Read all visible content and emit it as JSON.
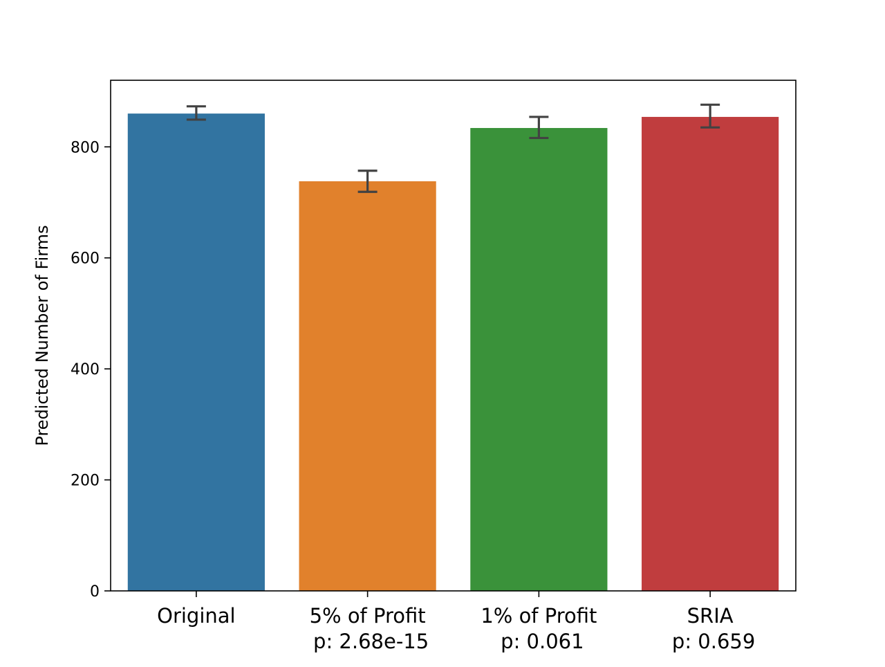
{
  "chart_data": {
    "type": "bar",
    "title": "",
    "xlabel": "",
    "ylabel": "Predicted Number of Firms",
    "ylim": [
      0,
      920
    ],
    "yticks": [
      0,
      200,
      400,
      600,
      800
    ],
    "ytick_labels": [
      "0",
      "200",
      "400",
      "600",
      "800"
    ],
    "grid": false,
    "legend": "none",
    "categories": [
      {
        "label": "Original",
        "sublabel": ""
      },
      {
        "label": "5% of Profit",
        "sublabel": "p: 2.68e-15"
      },
      {
        "label": "1% of Profit",
        "sublabel": "p: 0.061"
      },
      {
        "label": "SRIA",
        "sublabel": "p: 0.659"
      }
    ],
    "values": [
      860,
      738,
      834,
      854
    ],
    "error_bars": [
      {
        "low": 849,
        "high": 873
      },
      {
        "low": 719,
        "high": 757
      },
      {
        "low": 816,
        "high": 854
      },
      {
        "low": 835,
        "high": 876
      }
    ],
    "colors": [
      "#3274a1",
      "#e1812c",
      "#3a923a",
      "#c03d3e"
    ],
    "error_color": "#424242"
  }
}
